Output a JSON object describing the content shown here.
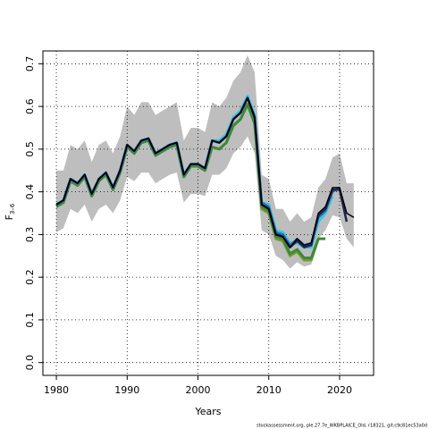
{
  "chart_data": {
    "type": "line",
    "x_label": "Years",
    "y_label": "F",
    "y_label_sub": "3–6",
    "footer": "stockassessment.org, ple.27.7e_WKBPLAICE_Old, r18321, git:c9c81ec53a0d",
    "x": [
      1980,
      1981,
      1982,
      1983,
      1984,
      1985,
      1986,
      1987,
      1988,
      1989,
      1990,
      1991,
      1992,
      1993,
      1994,
      1995,
      1996,
      1997,
      1998,
      1999,
      2000,
      2001,
      2002,
      2003,
      2004,
      2005,
      2006,
      2007,
      2008,
      2009,
      2010,
      2011,
      2012,
      2013,
      2014,
      2015,
      2016,
      2017,
      2018,
      2019,
      2020,
      2021,
      2022
    ],
    "xlim": [
      1978.1,
      2024.8
    ],
    "xticks": [
      1980,
      1990,
      2000,
      2010,
      2020
    ],
    "ylim": [
      -0.03,
      0.73
    ],
    "yticks": [
      {
        "value": 0,
        "label": "0.0"
      },
      0.1,
      0.2,
      0.3,
      0.4,
      0.5,
      0.6,
      0.7
    ],
    "grid": true,
    "band": {
      "color": "#bebebe",
      "lower": [
        0.305,
        0.315,
        0.36,
        0.35,
        0.37,
        0.33,
        0.36,
        0.37,
        0.35,
        0.38,
        0.435,
        0.425,
        0.445,
        0.445,
        0.42,
        0.43,
        0.44,
        0.445,
        0.375,
        0.395,
        0.395,
        0.39,
        0.44,
        0.44,
        0.455,
        0.49,
        0.505,
        0.53,
        0.49,
        0.31,
        0.3,
        0.25,
        0.24,
        0.22,
        0.235,
        0.225,
        0.23,
        0.29,
        0.31,
        0.345,
        0.34,
        0.29,
        0.27
      ],
      "upper": [
        0.45,
        0.45,
        0.51,
        0.5,
        0.52,
        0.47,
        0.51,
        0.52,
        0.49,
        0.53,
        0.6,
        0.58,
        0.61,
        0.61,
        0.58,
        0.59,
        0.6,
        0.61,
        0.52,
        0.55,
        0.55,
        0.54,
        0.61,
        0.6,
        0.62,
        0.66,
        0.68,
        0.72,
        0.68,
        0.44,
        0.43,
        0.36,
        0.36,
        0.33,
        0.35,
        0.33,
        0.34,
        0.41,
        0.43,
        0.48,
        0.49,
        0.42,
        0.42
      ]
    },
    "series": [
      {
        "color": "#7a9a2a",
        "width": 3,
        "values": [
          0.365,
          0.375,
          0.425,
          0.415,
          0.435,
          0.39,
          0.425,
          0.44,
          0.405,
          0.445,
          0.505,
          0.49,
          0.515,
          0.52,
          0.485,
          0.495,
          0.505,
          0.51,
          0.435,
          0.46,
          0.46,
          0.45,
          0.505,
          0.5,
          0.515,
          0.555,
          0.57,
          0.605,
          0.56,
          0.36,
          0.35,
          0.29,
          0.285,
          0.25,
          0.26,
          0.24,
          0.24,
          0.29,
          null,
          null,
          null,
          null,
          null
        ]
      },
      {
        "color": "#3a8a3a",
        "width": 3,
        "values": [
          0.365,
          0.375,
          0.425,
          0.415,
          0.435,
          0.39,
          0.425,
          0.44,
          0.405,
          0.445,
          0.505,
          0.49,
          0.515,
          0.52,
          0.485,
          0.495,
          0.505,
          0.51,
          0.435,
          0.46,
          0.46,
          0.45,
          0.505,
          0.5,
          0.515,
          0.555,
          0.57,
          0.605,
          0.56,
          0.365,
          0.355,
          0.295,
          0.29,
          0.255,
          0.265,
          0.245,
          0.245,
          0.29,
          0.29,
          null,
          null,
          null,
          null
        ]
      },
      {
        "color": "#3cc8e0",
        "width": 3,
        "values": [
          0.37,
          0.38,
          0.43,
          0.42,
          0.44,
          0.395,
          0.43,
          0.445,
          0.41,
          0.45,
          0.51,
          0.495,
          0.52,
          0.525,
          0.49,
          0.5,
          0.51,
          0.515,
          0.44,
          0.465,
          0.465,
          0.455,
          0.52,
          0.52,
          0.535,
          0.575,
          0.59,
          0.625,
          0.58,
          0.375,
          0.37,
          0.31,
          0.305,
          0.28,
          0.28,
          0.27,
          0.27,
          0.33,
          0.35,
          0.39,
          null,
          null,
          null
        ]
      },
      {
        "color": "#2a6fb0",
        "width": 2.5,
        "values": [
          0.37,
          0.38,
          0.43,
          0.42,
          0.44,
          0.395,
          0.43,
          0.445,
          0.41,
          0.45,
          0.51,
          0.495,
          0.52,
          0.525,
          0.49,
          0.5,
          0.51,
          0.515,
          0.44,
          0.465,
          0.465,
          0.455,
          0.52,
          0.515,
          0.53,
          0.57,
          0.585,
          0.62,
          0.575,
          0.375,
          0.365,
          0.305,
          0.3,
          0.275,
          0.29,
          0.275,
          0.28,
          0.34,
          0.355,
          0.4,
          0.41,
          null,
          null
        ]
      },
      {
        "color": "#222255",
        "width": 2.5,
        "values": [
          0.37,
          0.38,
          0.43,
          0.42,
          0.44,
          0.395,
          0.43,
          0.445,
          0.41,
          0.45,
          0.51,
          0.495,
          0.52,
          0.525,
          0.49,
          0.5,
          0.51,
          0.515,
          0.44,
          0.465,
          0.465,
          0.455,
          0.52,
          0.515,
          0.53,
          0.57,
          0.585,
          0.62,
          0.575,
          0.37,
          0.36,
          0.3,
          0.295,
          0.27,
          0.285,
          0.27,
          0.275,
          0.345,
          0.36,
          0.405,
          0.405,
          0.33,
          null
        ]
      },
      {
        "color": "#000000",
        "width": 1.5,
        "values": [
          0.37,
          0.38,
          0.43,
          0.42,
          0.44,
          0.395,
          0.43,
          0.445,
          0.41,
          0.45,
          0.51,
          0.495,
          0.52,
          0.525,
          0.49,
          0.5,
          0.51,
          0.515,
          0.44,
          0.465,
          0.465,
          0.455,
          0.52,
          0.515,
          0.53,
          0.57,
          0.585,
          0.62,
          0.575,
          0.37,
          0.36,
          0.3,
          0.295,
          0.27,
          0.29,
          0.275,
          0.28,
          0.35,
          0.365,
          0.41,
          0.41,
          0.35,
          0.34
        ]
      }
    ]
  }
}
